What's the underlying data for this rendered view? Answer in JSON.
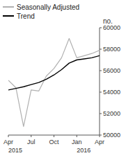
{
  "chart_data": {
    "type": "line",
    "y_label": "no.",
    "x": [
      0,
      1,
      2,
      3,
      4,
      5,
      6,
      7,
      8,
      9,
      10,
      11,
      12
    ],
    "xlim": [
      0,
      12
    ],
    "xticks": [
      {
        "value": 0,
        "label": "Apr"
      },
      {
        "value": 3,
        "label": "Jul"
      },
      {
        "value": 6,
        "label": "Oct"
      },
      {
        "value": 9,
        "label": "Jan"
      },
      {
        "value": 12,
        "label": "Apr"
      }
    ],
    "ylim": [
      50000,
      60000
    ],
    "yticks": [
      50000,
      52000,
      54000,
      56000,
      58000,
      60000
    ],
    "series": [
      {
        "name": "Seasonally Adjusted",
        "color": "#b0b0b0",
        "values": [
          55100,
          54400,
          50800,
          54200,
          54100,
          55500,
          56200,
          57200,
          59000,
          57200,
          57400,
          57600,
          57900
        ]
      },
      {
        "name": "Trend",
        "color": "#000000",
        "values": [
          54200,
          54350,
          54500,
          54700,
          54900,
          55200,
          55600,
          56100,
          56700,
          57000,
          57100,
          57200,
          57400
        ]
      }
    ],
    "annotations": [
      {
        "text": "2015",
        "x": 0
      },
      {
        "text": "2016",
        "x": 9
      }
    ],
    "legend": "upper left",
    "grid": false
  }
}
